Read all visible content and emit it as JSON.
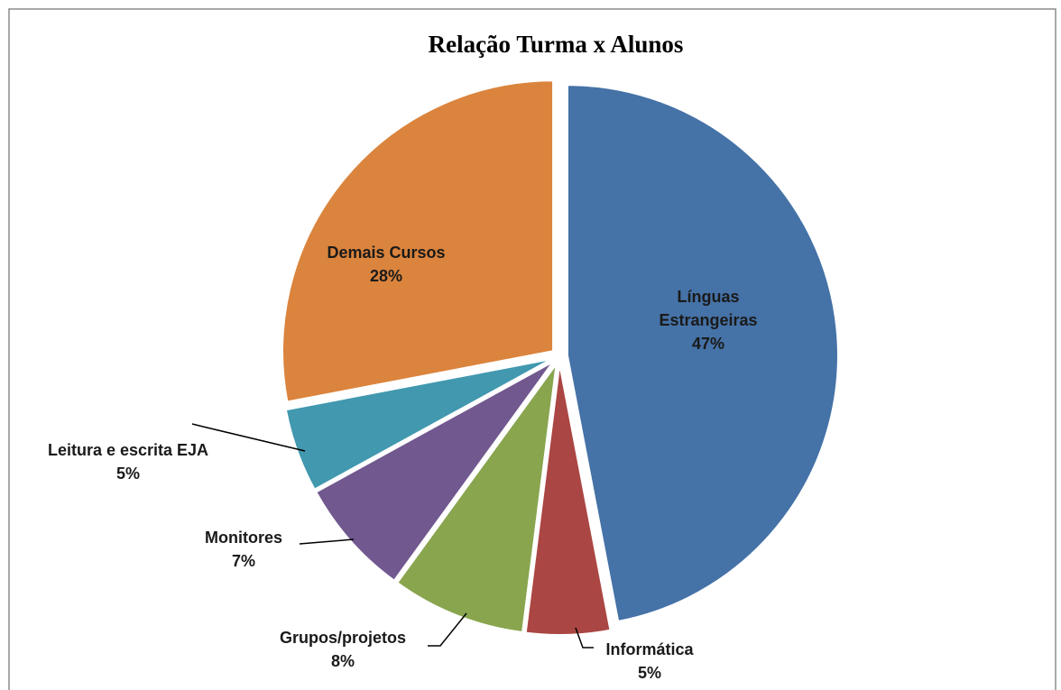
{
  "chart_data": {
    "type": "pie",
    "title": "Relação Turma x Alunos",
    "categories": [
      "Línguas Estrangeiras",
      "Informática",
      "Grupos/projetos",
      "Monitores",
      "Leitura e escrita EJA",
      "Demais Cursos"
    ],
    "values": [
      47,
      5,
      8,
      7,
      5,
      28
    ],
    "value_labels": [
      "47%",
      "5%",
      "8%",
      "7%",
      "5%",
      "28%"
    ],
    "colors": [
      "#4572a7",
      "#aa4643",
      "#89a54e",
      "#71588f",
      "#4198af",
      "#db843d"
    ]
  }
}
